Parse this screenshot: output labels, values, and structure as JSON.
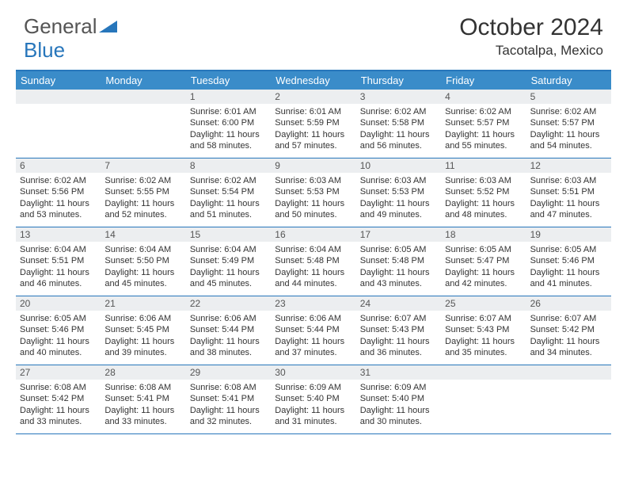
{
  "logo": {
    "text1": "General",
    "text2": "Blue"
  },
  "title": "October 2024",
  "location": "Tacotalpa, Mexico",
  "colors": {
    "header_bar": "#3a8cc9",
    "border": "#2776bb",
    "numrow_bg": "#eceef0",
    "text": "#333333",
    "logo_gray": "#555555",
    "logo_blue": "#2776bb",
    "background": "#ffffff"
  },
  "typography": {
    "title_fontsize": 30,
    "location_fontsize": 17,
    "logo_fontsize": 26,
    "dayhead_fontsize": 13,
    "daynum_fontsize": 12,
    "cell_fontsize": 11
  },
  "day_names": [
    "Sunday",
    "Monday",
    "Tuesday",
    "Wednesday",
    "Thursday",
    "Friday",
    "Saturday"
  ],
  "weeks": [
    [
      {
        "n": "",
        "lines": [
          "",
          "",
          "",
          ""
        ]
      },
      {
        "n": "",
        "lines": [
          "",
          "",
          "",
          ""
        ]
      },
      {
        "n": "1",
        "lines": [
          "Sunrise: 6:01 AM",
          "Sunset: 6:00 PM",
          "Daylight: 11 hours",
          "and 58 minutes."
        ]
      },
      {
        "n": "2",
        "lines": [
          "Sunrise: 6:01 AM",
          "Sunset: 5:59 PM",
          "Daylight: 11 hours",
          "and 57 minutes."
        ]
      },
      {
        "n": "3",
        "lines": [
          "Sunrise: 6:02 AM",
          "Sunset: 5:58 PM",
          "Daylight: 11 hours",
          "and 56 minutes."
        ]
      },
      {
        "n": "4",
        "lines": [
          "Sunrise: 6:02 AM",
          "Sunset: 5:57 PM",
          "Daylight: 11 hours",
          "and 55 minutes."
        ]
      },
      {
        "n": "5",
        "lines": [
          "Sunrise: 6:02 AM",
          "Sunset: 5:57 PM",
          "Daylight: 11 hours",
          "and 54 minutes."
        ]
      }
    ],
    [
      {
        "n": "6",
        "lines": [
          "Sunrise: 6:02 AM",
          "Sunset: 5:56 PM",
          "Daylight: 11 hours",
          "and 53 minutes."
        ]
      },
      {
        "n": "7",
        "lines": [
          "Sunrise: 6:02 AM",
          "Sunset: 5:55 PM",
          "Daylight: 11 hours",
          "and 52 minutes."
        ]
      },
      {
        "n": "8",
        "lines": [
          "Sunrise: 6:02 AM",
          "Sunset: 5:54 PM",
          "Daylight: 11 hours",
          "and 51 minutes."
        ]
      },
      {
        "n": "9",
        "lines": [
          "Sunrise: 6:03 AM",
          "Sunset: 5:53 PM",
          "Daylight: 11 hours",
          "and 50 minutes."
        ]
      },
      {
        "n": "10",
        "lines": [
          "Sunrise: 6:03 AM",
          "Sunset: 5:53 PM",
          "Daylight: 11 hours",
          "and 49 minutes."
        ]
      },
      {
        "n": "11",
        "lines": [
          "Sunrise: 6:03 AM",
          "Sunset: 5:52 PM",
          "Daylight: 11 hours",
          "and 48 minutes."
        ]
      },
      {
        "n": "12",
        "lines": [
          "Sunrise: 6:03 AM",
          "Sunset: 5:51 PM",
          "Daylight: 11 hours",
          "and 47 minutes."
        ]
      }
    ],
    [
      {
        "n": "13",
        "lines": [
          "Sunrise: 6:04 AM",
          "Sunset: 5:51 PM",
          "Daylight: 11 hours",
          "and 46 minutes."
        ]
      },
      {
        "n": "14",
        "lines": [
          "Sunrise: 6:04 AM",
          "Sunset: 5:50 PM",
          "Daylight: 11 hours",
          "and 45 minutes."
        ]
      },
      {
        "n": "15",
        "lines": [
          "Sunrise: 6:04 AM",
          "Sunset: 5:49 PM",
          "Daylight: 11 hours",
          "and 45 minutes."
        ]
      },
      {
        "n": "16",
        "lines": [
          "Sunrise: 6:04 AM",
          "Sunset: 5:48 PM",
          "Daylight: 11 hours",
          "and 44 minutes."
        ]
      },
      {
        "n": "17",
        "lines": [
          "Sunrise: 6:05 AM",
          "Sunset: 5:48 PM",
          "Daylight: 11 hours",
          "and 43 minutes."
        ]
      },
      {
        "n": "18",
        "lines": [
          "Sunrise: 6:05 AM",
          "Sunset: 5:47 PM",
          "Daylight: 11 hours",
          "and 42 minutes."
        ]
      },
      {
        "n": "19",
        "lines": [
          "Sunrise: 6:05 AM",
          "Sunset: 5:46 PM",
          "Daylight: 11 hours",
          "and 41 minutes."
        ]
      }
    ],
    [
      {
        "n": "20",
        "lines": [
          "Sunrise: 6:05 AM",
          "Sunset: 5:46 PM",
          "Daylight: 11 hours",
          "and 40 minutes."
        ]
      },
      {
        "n": "21",
        "lines": [
          "Sunrise: 6:06 AM",
          "Sunset: 5:45 PM",
          "Daylight: 11 hours",
          "and 39 minutes."
        ]
      },
      {
        "n": "22",
        "lines": [
          "Sunrise: 6:06 AM",
          "Sunset: 5:44 PM",
          "Daylight: 11 hours",
          "and 38 minutes."
        ]
      },
      {
        "n": "23",
        "lines": [
          "Sunrise: 6:06 AM",
          "Sunset: 5:44 PM",
          "Daylight: 11 hours",
          "and 37 minutes."
        ]
      },
      {
        "n": "24",
        "lines": [
          "Sunrise: 6:07 AM",
          "Sunset: 5:43 PM",
          "Daylight: 11 hours",
          "and 36 minutes."
        ]
      },
      {
        "n": "25",
        "lines": [
          "Sunrise: 6:07 AM",
          "Sunset: 5:43 PM",
          "Daylight: 11 hours",
          "and 35 minutes."
        ]
      },
      {
        "n": "26",
        "lines": [
          "Sunrise: 6:07 AM",
          "Sunset: 5:42 PM",
          "Daylight: 11 hours",
          "and 34 minutes."
        ]
      }
    ],
    [
      {
        "n": "27",
        "lines": [
          "Sunrise: 6:08 AM",
          "Sunset: 5:42 PM",
          "Daylight: 11 hours",
          "and 33 minutes."
        ]
      },
      {
        "n": "28",
        "lines": [
          "Sunrise: 6:08 AM",
          "Sunset: 5:41 PM",
          "Daylight: 11 hours",
          "and 33 minutes."
        ]
      },
      {
        "n": "29",
        "lines": [
          "Sunrise: 6:08 AM",
          "Sunset: 5:41 PM",
          "Daylight: 11 hours",
          "and 32 minutes."
        ]
      },
      {
        "n": "30",
        "lines": [
          "Sunrise: 6:09 AM",
          "Sunset: 5:40 PM",
          "Daylight: 11 hours",
          "and 31 minutes."
        ]
      },
      {
        "n": "31",
        "lines": [
          "Sunrise: 6:09 AM",
          "Sunset: 5:40 PM",
          "Daylight: 11 hours",
          "and 30 minutes."
        ]
      },
      {
        "n": "",
        "lines": [
          "",
          "",
          "",
          ""
        ]
      },
      {
        "n": "",
        "lines": [
          "",
          "",
          "",
          ""
        ]
      }
    ]
  ]
}
